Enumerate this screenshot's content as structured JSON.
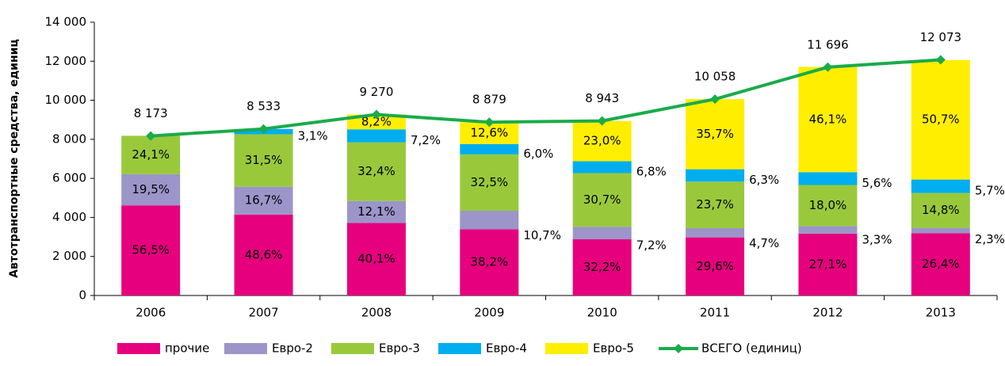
{
  "chart_data": {
    "type": "stacked_bar_line",
    "y_label": "Автотранспортные средства, единиц",
    "categories": [
      "2006",
      "2007",
      "2008",
      "2009",
      "2010",
      "2011",
      "2012",
      "2013"
    ],
    "ylim": [
      0,
      14000
    ],
    "yticks": [
      0,
      {
        "value": 2000,
        "label": "2 000"
      },
      {
        "value": 4000,
        "label": "4 000"
      },
      {
        "value": 6000,
        "label": "6 000"
      },
      {
        "value": 8000,
        "label": "8 000"
      },
      {
        "value": 10000,
        "label": "10 000"
      },
      {
        "value": 12000,
        "label": "12 000"
      },
      {
        "value": 14000,
        "label": "14 000"
      }
    ],
    "series": [
      {
        "name": "прочие",
        "color": "#e6007e",
        "values": [
          56.5,
          48.6,
          40.1,
          38.2,
          32.2,
          29.6,
          27.1,
          26.4
        ],
        "value_labels": [
          "56,5%",
          "48,6%",
          "40,1%",
          "38,2%",
          "32,2%",
          "29,6%",
          "27,1%",
          "26,4%"
        ]
      },
      {
        "name": "Евро-2",
        "color": "#9b95c9",
        "values": [
          19.5,
          16.7,
          12.1,
          10.7,
          7.2,
          4.7,
          3.3,
          2.3
        ],
        "value_labels": [
          "19,5%",
          "16,7%",
          "12,1%",
          "10,7%",
          "7,2%",
          "4,7%",
          "3,3%",
          "2,3%"
        ]
      },
      {
        "name": "Евро-3",
        "color": "#99c93b",
        "values": [
          24.1,
          31.5,
          32.4,
          32.5,
          30.7,
          23.7,
          18.0,
          14.8
        ],
        "value_labels": [
          "24,1%",
          "31,5%",
          "32,4%",
          "32,5%",
          "30,7%",
          "23,7%",
          "18,0%",
          "14,8%"
        ]
      },
      {
        "name": "Евро-4",
        "color": "#00aeef",
        "values": [
          null,
          3.1,
          7.2,
          6.0,
          6.8,
          6.3,
          5.6,
          5.7
        ],
        "value_labels": [
          null,
          "3,1%",
          "7,2%",
          "6,0%",
          "6,8%",
          "6,3%",
          "5,6%",
          "5,7%"
        ]
      },
      {
        "name": "Евро-5",
        "color": "#ffee00",
        "values": [
          null,
          null,
          8.2,
          12.6,
          23.0,
          35.7,
          46.1,
          50.7
        ],
        "value_labels": [
          null,
          null,
          "8,2%",
          "12,6%",
          "23,0%",
          "35,7%",
          "46,1%",
          "50,7%"
        ]
      },
      {
        "name": "ВСЕГО (единиц)",
        "color": "#1aab4b",
        "values": [
          8173,
          8533,
          9270,
          8879,
          8943,
          10058,
          11696,
          12073
        ],
        "value_labels": [
          "8 173",
          "8 533",
          "9 270",
          "8 879",
          "8 943",
          "10 058",
          "11 696",
          "12 073"
        ]
      }
    ]
  }
}
